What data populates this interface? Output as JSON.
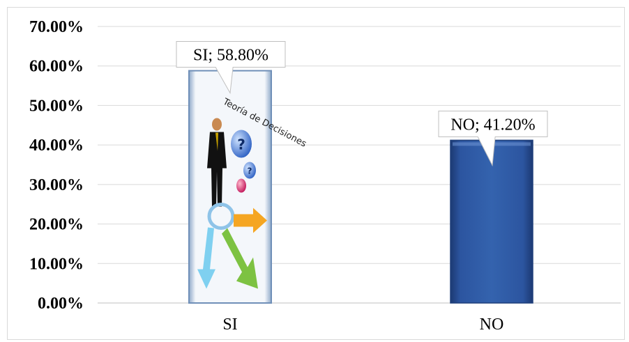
{
  "chart_data": {
    "type": "bar",
    "categories": [
      "SI",
      "NO"
    ],
    "values": [
      58.8,
      41.2
    ],
    "data_labels": [
      "SI; 58.80%",
      "NO; 41.20%"
    ],
    "ylim": [
      0,
      70
    ],
    "yticks": [
      "0.00%",
      "10.00%",
      "20.00%",
      "30.00%",
      "40.00%",
      "50.00%",
      "60.00%",
      "70.00%"
    ],
    "grid": true,
    "legend": "none",
    "bar_fill": [
      "picture",
      "#2f5597"
    ],
    "picture_text": "Teoría de Decisiones",
    "colors": {
      "bar_dark": "#1f3f7a",
      "bar_main": "#3060a8",
      "grid": "#d9d9d9",
      "axis": "#bfbfbf"
    }
  }
}
